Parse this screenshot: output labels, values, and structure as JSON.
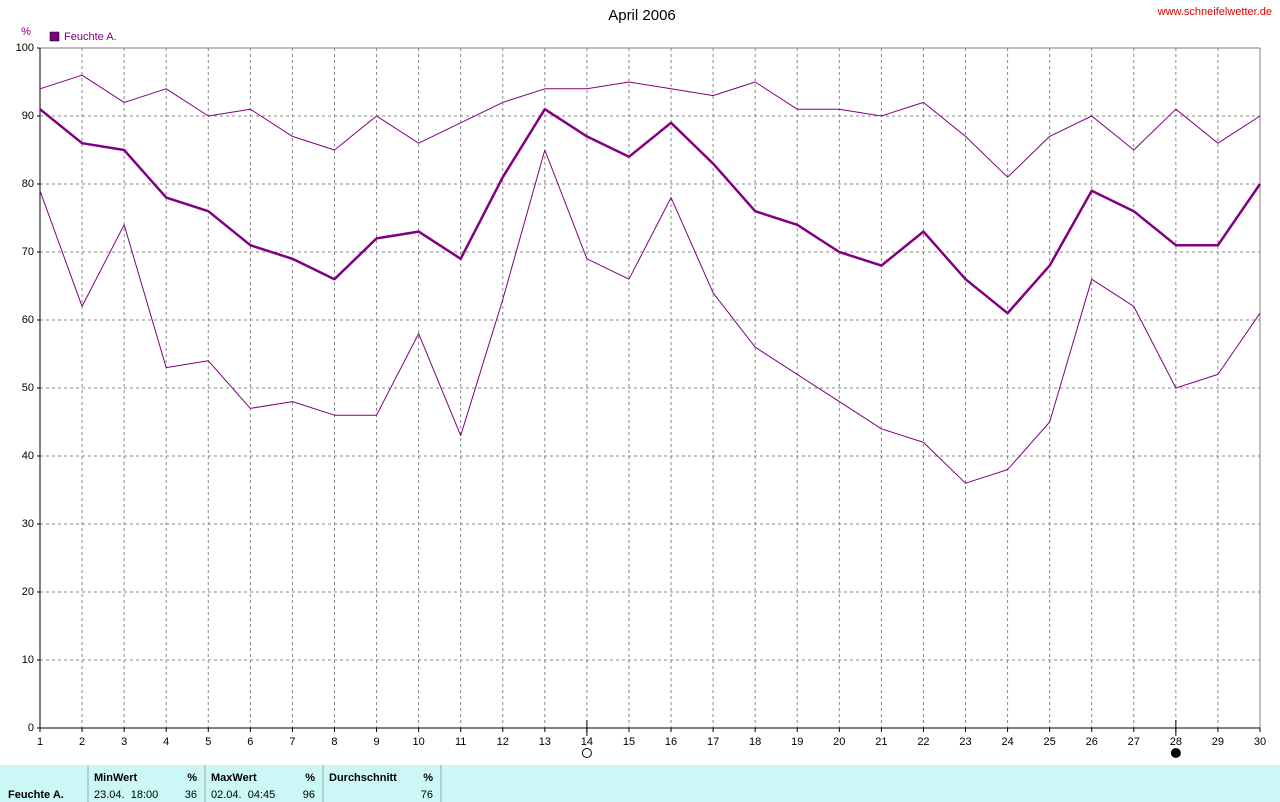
{
  "chart_data": {
    "type": "line",
    "title": "April 2006",
    "source": "www.schneifelwetter.de",
    "y_label": "%",
    "x": [
      1,
      2,
      3,
      4,
      5,
      6,
      7,
      8,
      9,
      10,
      11,
      12,
      13,
      14,
      15,
      16,
      17,
      18,
      19,
      20,
      21,
      22,
      23,
      24,
      25,
      26,
      27,
      28,
      29,
      30
    ],
    "series": [
      {
        "name": "Feuchte A.",
        "color": "#800080",
        "values": [
          91,
          86,
          85,
          78,
          76,
          71,
          69,
          66,
          72,
          73,
          69,
          81,
          91,
          87,
          84,
          89,
          83,
          76,
          74,
          70,
          68,
          73,
          66,
          61,
          68,
          79,
          76,
          71,
          71,
          80
        ],
        "min": [
          79,
          62,
          74,
          53,
          54,
          47,
          48,
          46,
          46,
          58,
          43,
          63,
          85,
          69,
          66,
          78,
          64,
          56,
          52,
          48,
          44,
          42,
          36,
          38,
          45,
          66,
          62,
          50,
          52,
          61
        ],
        "max": [
          94,
          96,
          92,
          94,
          90,
          91,
          87,
          85,
          90,
          86,
          89,
          92,
          94,
          94,
          95,
          94,
          93,
          95,
          91,
          91,
          90,
          92,
          87,
          81,
          87,
          90,
          85,
          91,
          86,
          90
        ]
      }
    ],
    "xlim": [
      1,
      30
    ],
    "xticks": [
      1,
      2,
      3,
      4,
      5,
      6,
      7,
      8,
      9,
      10,
      11,
      12,
      13,
      14,
      15,
      16,
      17,
      18,
      19,
      20,
      21,
      22,
      23,
      24,
      25,
      26,
      27,
      28,
      29,
      30
    ],
    "ylim": [
      0,
      100
    ],
    "yticks": [
      0,
      10,
      20,
      30,
      40,
      50,
      60,
      70,
      80,
      90,
      100
    ],
    "grid": true,
    "legend": "top-left",
    "moon": [
      {
        "x": 14,
        "fill": "none"
      },
      {
        "x": 28,
        "fill": "#000000"
      }
    ]
  },
  "stats_table": {
    "row_label": "Feuchte A.",
    "columns": [
      {
        "header": "MinWert",
        "unit": "%",
        "time": "23.04.  18:00",
        "value": "36"
      },
      {
        "header": "MaxWert",
        "unit": "%",
        "time": "02.04.  04:45",
        "value": "96"
      },
      {
        "header": "Durchschnitt",
        "unit": "%",
        "time": "",
        "value": "76"
      }
    ]
  }
}
